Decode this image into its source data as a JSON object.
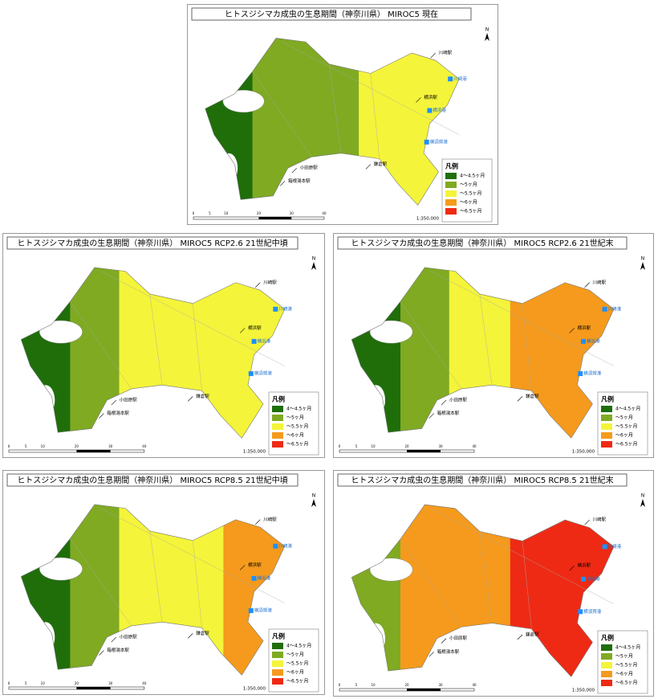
{
  "panels": [
    {
      "title": "ヒトスジシマカ成虫の生息期間（神奈川県） MIROC5 現在"
    },
    {
      "title": "ヒトスジシマカ成虫の生息期間（神奈川県） MIROC5 RCP2.6 21世紀中頃"
    },
    {
      "title": "ヒトスジシマカ成虫の生息期間（神奈川県） MIROC5 RCP2.6 21世紀末"
    },
    {
      "title": "ヒトスジシマカ成虫の生息期間（神奈川県） MIROC5 RCP8.5 21世紀中頃"
    },
    {
      "title": "ヒトスジシマカ成虫の生息期間（神奈川県） MIROC5 RCP8.5 21世紀末"
    }
  ],
  "legend": {
    "title": "凡例",
    "items": [
      {
        "label": "4～4.5ヶ月",
        "color": "#1f6e0a"
      },
      {
        "label": "～5ヶ月",
        "color": "#7faa22"
      },
      {
        "label": "～5.5ヶ月",
        "color": "#f4f43a"
      },
      {
        "label": "～6ヶ月",
        "color": "#f59a1c"
      },
      {
        "label": "～6.5ヶ月",
        "color": "#ee2a14"
      }
    ]
  },
  "places": [
    "川崎駅",
    "川崎港",
    "横浜駅",
    "横浜港",
    "横須賀港",
    "鎌倉駅",
    "小田原駅",
    "箱根湯本駅"
  ],
  "scale": "1:350,000",
  "north": "N",
  "scale_bar_labels": [
    "0",
    "5",
    "10",
    "20",
    "30",
    "40"
  ]
}
